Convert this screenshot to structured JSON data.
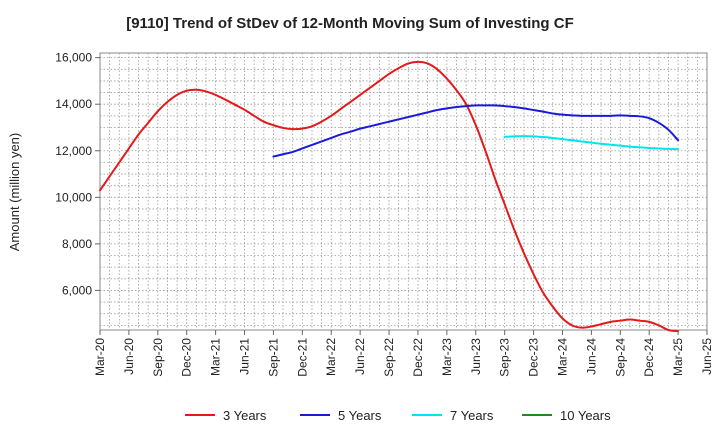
{
  "chart_data": {
    "type": "line",
    "title": "[9110]  Trend of StDev of 12-Month Moving Sum of Investing CF",
    "xlabel": "",
    "ylabel": "Amount (million yen)",
    "x_tick_labels": [
      "Mar-20",
      "Jun-20",
      "Sep-20",
      "Dec-20",
      "Mar-21",
      "Jun-21",
      "Sep-21",
      "Dec-21",
      "Mar-22",
      "Jun-22",
      "Sep-22",
      "Dec-22",
      "Mar-23",
      "Jun-23",
      "Sep-23",
      "Dec-23",
      "Mar-24",
      "Jun-24",
      "Sep-24",
      "Dec-24",
      "Mar-25",
      "Jun-25"
    ],
    "y_ticks": [
      6000,
      8000,
      10000,
      12000,
      14000,
      16000
    ],
    "y_tick_labels": [
      "6,000",
      "8,000",
      "10,000",
      "12,000",
      "14,000",
      "16,000"
    ],
    "ylim": [
      4300,
      16200
    ],
    "grid": true,
    "legend_position": "bottom",
    "series": [
      {
        "name": "3 Years",
        "color": "#e31a1c",
        "x": [
          "Mar-20",
          "Apr-20",
          "May-20",
          "Jun-20",
          "Jul-20",
          "Aug-20",
          "Sep-20",
          "Oct-20",
          "Nov-20",
          "Dec-20",
          "Jan-21",
          "Feb-21",
          "Mar-21",
          "Apr-21",
          "May-21",
          "Jun-21",
          "Jul-21",
          "Aug-21",
          "Sep-21",
          "Oct-21",
          "Nov-21",
          "Dec-21",
          "Jan-22",
          "Feb-22",
          "Mar-22",
          "Apr-22",
          "May-22",
          "Jun-22",
          "Jul-22",
          "Aug-22",
          "Sep-22",
          "Oct-22",
          "Nov-22",
          "Dec-22",
          "Jan-23",
          "Feb-23",
          "Mar-23",
          "Apr-23",
          "May-23",
          "Jun-23",
          "Jul-23",
          "Aug-23",
          "Sep-23",
          "Oct-23",
          "Nov-23",
          "Dec-23",
          "Jan-24",
          "Feb-24",
          "Mar-24",
          "Apr-24",
          "May-24",
          "Jun-24",
          "Jul-24",
          "Aug-24",
          "Sep-24",
          "Oct-24",
          "Nov-24",
          "Dec-24",
          "Jan-25",
          "Feb-25",
          "Mar-25"
        ],
        "values": [
          10300,
          10900,
          11500,
          12100,
          12700,
          13200,
          13700,
          14100,
          14400,
          14580,
          14620,
          14550,
          14400,
          14200,
          13980,
          13760,
          13500,
          13250,
          13100,
          12980,
          12930,
          12950,
          13050,
          13250,
          13500,
          13800,
          14100,
          14400,
          14700,
          15000,
          15300,
          15550,
          15750,
          15820,
          15750,
          15500,
          15100,
          14600,
          14000,
          13100,
          12000,
          10800,
          9700,
          8600,
          7600,
          6700,
          5900,
          5300,
          4800,
          4500,
          4400,
          4450,
          4550,
          4650,
          4700,
          4750,
          4700,
          4650,
          4500,
          4300,
          4250
        ]
      },
      {
        "name": "5 Years",
        "color": "#1a1adb",
        "x": [
          "Mar-21",
          "Apr-21",
          "May-21",
          "Jun-21",
          "Jul-21",
          "Aug-21",
          "Sep-21",
          "Oct-21",
          "Nov-21",
          "Dec-21",
          "Jan-22",
          "Feb-22",
          "Mar-22",
          "Apr-22",
          "May-22",
          "Jun-22",
          "Jul-22",
          "Aug-22",
          "Sep-22",
          "Oct-22",
          "Nov-22",
          "Dec-22",
          "Jan-23",
          "Feb-23",
          "Mar-23",
          "Apr-23",
          "May-23",
          "Jun-23",
          "Jul-23",
          "Aug-23",
          "Sep-23",
          "Oct-23",
          "Nov-23",
          "Dec-23",
          "Jan-24",
          "Feb-24",
          "Mar-24",
          "Apr-24",
          "May-24",
          "Jun-24",
          "Jul-24",
          "Aug-24",
          "Sep-24",
          "Oct-24",
          "Nov-24",
          "Dec-24",
          "Jan-25",
          "Feb-25",
          "Mar-25"
        ],
        "values": [
          null,
          null,
          null,
          null,
          null,
          null,
          11750,
          11850,
          11950,
          12100,
          12250,
          12400,
          12550,
          12700,
          12820,
          12950,
          13050,
          13150,
          13250,
          13350,
          13450,
          13550,
          13650,
          13750,
          13820,
          13880,
          13920,
          13950,
          13950,
          13950,
          13920,
          13880,
          13820,
          13750,
          13680,
          13600,
          13550,
          13520,
          13500,
          13500,
          13500,
          13500,
          13520,
          13500,
          13480,
          13400,
          13200,
          12900,
          12450
        ]
      },
      {
        "name": "7 Years",
        "color": "#00e5ee",
        "x": [
          "Sep-23",
          "Oct-23",
          "Nov-23",
          "Dec-23",
          "Jan-24",
          "Feb-24",
          "Mar-24",
          "Apr-24",
          "May-24",
          "Jun-24",
          "Jul-24",
          "Aug-24",
          "Sep-24",
          "Oct-24",
          "Nov-24",
          "Dec-24",
          "Jan-25",
          "Feb-25",
          "Mar-25"
        ],
        "values": [
          12600,
          12620,
          12630,
          12620,
          12590,
          12550,
          12500,
          12450,
          12400,
          12350,
          12300,
          12260,
          12220,
          12180,
          12150,
          12120,
          12100,
          12080,
          12070
        ]
      },
      {
        "name": "10 Years",
        "color": "#1f8a1f",
        "x": [],
        "values": []
      }
    ]
  }
}
